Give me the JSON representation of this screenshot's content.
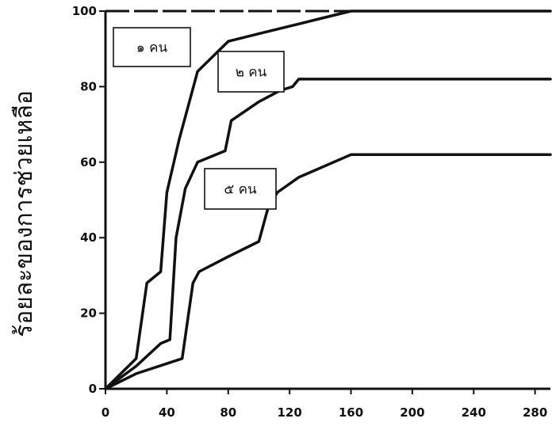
{
  "chart_data": {
    "type": "line",
    "title": "",
    "xlabel": "",
    "ylabel": "ร้อยละของการช่วยเหลือ",
    "xlim": [
      0,
      290
    ],
    "ylim": [
      0,
      100
    ],
    "x_ticks": [
      "0",
      "40",
      "80",
      "120",
      "160",
      "200",
      "240",
      "280"
    ],
    "y_ticks": [
      "0",
      "20",
      "40",
      "60",
      "80",
      "100"
    ],
    "grid": false,
    "series": [
      {
        "name": "๑ คน",
        "x": [
          0,
          20,
          27,
          36,
          40,
          48,
          60,
          70,
          80,
          100,
          120,
          140,
          160,
          290
        ],
        "y": [
          0,
          8,
          28,
          31,
          52,
          66,
          84,
          88,
          92,
          94,
          96,
          98,
          100,
          100
        ]
      },
      {
        "name": "๒ คน",
        "x": [
          0,
          20,
          36,
          42,
          46,
          52,
          60,
          78,
          82,
          100,
          114,
          122,
          126,
          290
        ],
        "y": [
          0,
          6,
          12,
          13,
          40,
          53,
          60,
          63,
          71,
          76,
          79,
          80,
          82,
          82
        ]
      },
      {
        "name": "๕ คน",
        "x": [
          0,
          20,
          50,
          57,
          61,
          80,
          100,
          106,
          112,
          126,
          160,
          290
        ],
        "y": [
          0,
          4,
          8,
          28,
          31,
          35,
          39,
          48,
          52,
          56,
          62,
          62
        ]
      }
    ]
  }
}
